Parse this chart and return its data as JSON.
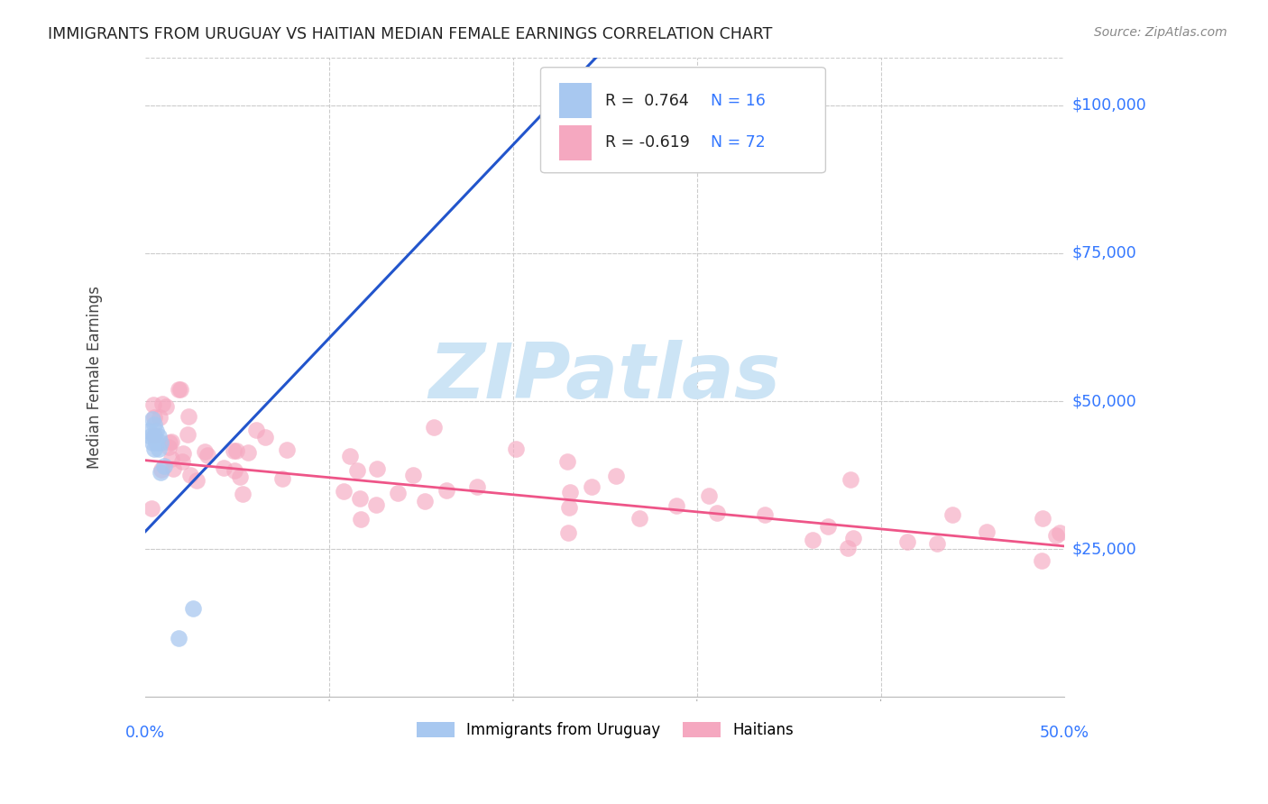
{
  "title": "IMMIGRANTS FROM URUGUAY VS HAITIAN MEDIAN FEMALE EARNINGS CORRELATION CHART",
  "source": "Source: ZipAtlas.com",
  "ylabel": "Median Female Earnings",
  "yticks": [
    25000,
    50000,
    75000,
    100000
  ],
  "ytick_labels": [
    "$25,000",
    "$50,000",
    "$75,000",
    "$100,000"
  ],
  "ylim": [
    0,
    108000
  ],
  "xlim": [
    0.0,
    0.5
  ],
  "legend_labels": [
    "Immigrants from Uruguay",
    "Haitians"
  ],
  "uruguay_color": "#a8c8f0",
  "haitian_color": "#f5a8c0",
  "uruguay_line_color": "#2255cc",
  "haitian_line_color": "#ee5588",
  "background_color": "#ffffff",
  "grid_color": "#cccccc",
  "watermark_color": "#cce4f5",
  "title_color": "#222222",
  "ytick_color": "#3377ff",
  "xtick_color": "#3377ff",
  "legend_r1": "R =  0.764",
  "legend_n1": "N = 16",
  "legend_r2": "R = -0.619",
  "legend_n2": "N = 72",
  "uruguay_line_x": [
    0.0,
    0.245
  ],
  "uruguay_line_y": [
    28000,
    108000
  ],
  "haitian_line_x": [
    0.0,
    0.5
  ],
  "haitian_line_y": [
    40000,
    25500
  ]
}
